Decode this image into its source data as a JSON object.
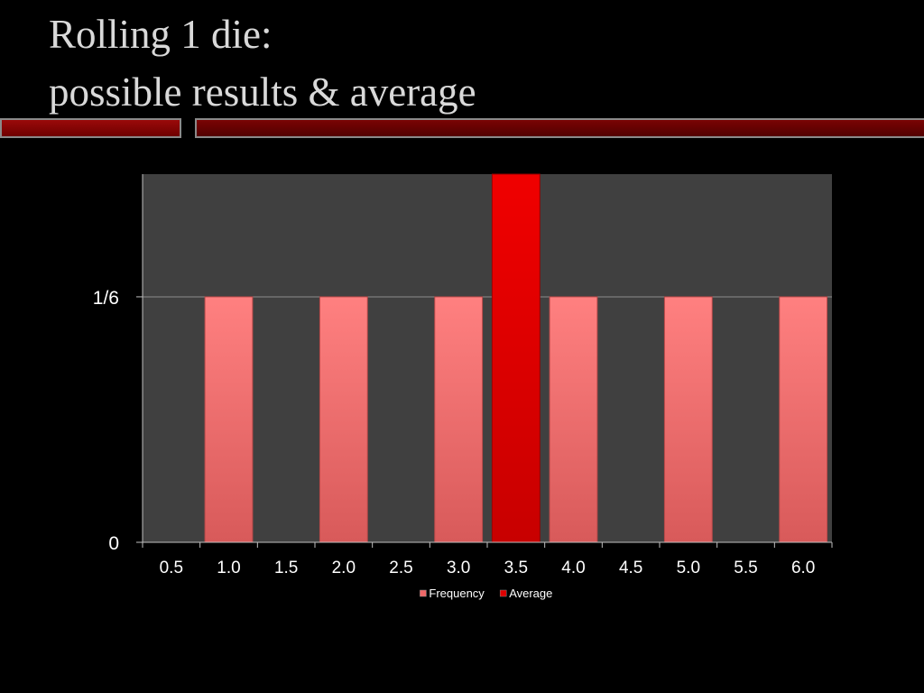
{
  "slide": {
    "title_line1": "Rolling 1 die:",
    "title_line2": "possible results & average"
  },
  "colors": {
    "background": "#000000",
    "plot_area": "#404040",
    "frequency_bar": "#f06868",
    "average_bar": "#e00000",
    "accent": "#7a0000",
    "text": "#ffffff",
    "title": "#d9d9d9"
  },
  "chart_data": {
    "type": "bar",
    "title": "",
    "xlabel": "",
    "ylabel": "",
    "categories": [
      "0.5",
      "1.0",
      "1.5",
      "2.0",
      "2.5",
      "3.0",
      "3.5",
      "4.0",
      "4.5",
      "5.0",
      "5.5",
      "6.0"
    ],
    "y_ticks": [
      {
        "value": 0,
        "label": "0"
      },
      {
        "value": 0.1667,
        "label": "1/6"
      }
    ],
    "ylim": [
      0,
      0.25
    ],
    "grid": true,
    "legend_position": "bottom",
    "series": [
      {
        "name": "Frequency",
        "color": "#f06868",
        "values": [
          0,
          0.1667,
          0,
          0.1667,
          0,
          0.1667,
          0,
          0.1667,
          0,
          0.1667,
          0,
          0.1667
        ]
      },
      {
        "name": "Average",
        "color": "#e00000",
        "values": [
          0,
          0,
          0,
          0,
          0,
          0,
          0.25,
          0,
          0,
          0,
          0,
          0
        ]
      }
    ]
  }
}
